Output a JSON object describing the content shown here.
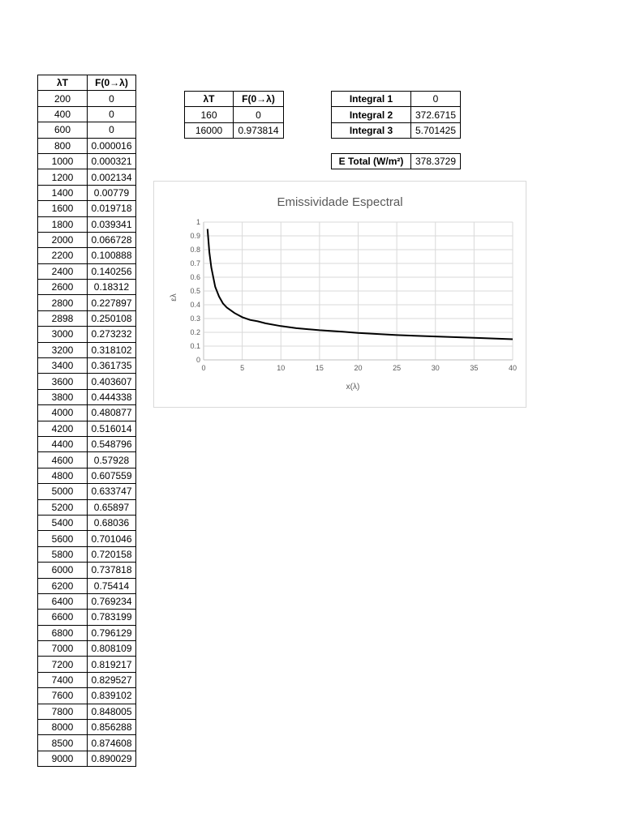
{
  "main_table": {
    "headers": [
      "λT",
      "F(0→λ)"
    ],
    "rows": [
      [
        "200",
        "0"
      ],
      [
        "400",
        "0"
      ],
      [
        "600",
        "0"
      ],
      [
        "800",
        "0.000016"
      ],
      [
        "1000",
        "0.000321"
      ],
      [
        "1200",
        "0.002134"
      ],
      [
        "1400",
        "0.00779"
      ],
      [
        "1600",
        "0.019718"
      ],
      [
        "1800",
        "0.039341"
      ],
      [
        "2000",
        "0.066728"
      ],
      [
        "2200",
        "0.100888"
      ],
      [
        "2400",
        "0.140256"
      ],
      [
        "2600",
        "0.18312"
      ],
      [
        "2800",
        "0.227897"
      ],
      [
        "2898",
        "0.250108"
      ],
      [
        "3000",
        "0.273232"
      ],
      [
        "3200",
        "0.318102"
      ],
      [
        "3400",
        "0.361735"
      ],
      [
        "3600",
        "0.403607"
      ],
      [
        "3800",
        "0.444338"
      ],
      [
        "4000",
        "0.480877"
      ],
      [
        "4200",
        "0.516014"
      ],
      [
        "4400",
        "0.548796"
      ],
      [
        "4600",
        "0.57928"
      ],
      [
        "4800",
        "0.607559"
      ],
      [
        "5000",
        "0.633747"
      ],
      [
        "5200",
        "0.65897"
      ],
      [
        "5400",
        "0.68036"
      ],
      [
        "5600",
        "0.701046"
      ],
      [
        "5800",
        "0.720158"
      ],
      [
        "6000",
        "0.737818"
      ],
      [
        "6200",
        "0.75414"
      ],
      [
        "6400",
        "0.769234"
      ],
      [
        "6600",
        "0.783199"
      ],
      [
        "6800",
        "0.796129"
      ],
      [
        "7000",
        "0.808109"
      ],
      [
        "7200",
        "0.819217"
      ],
      [
        "7400",
        "0.829527"
      ],
      [
        "7600",
        "0.839102"
      ],
      [
        "7800",
        "0.848005"
      ],
      [
        "8000",
        "0.856288"
      ],
      [
        "8500",
        "0.874608"
      ],
      [
        "9000",
        "0.890029"
      ]
    ]
  },
  "small_table": {
    "headers": [
      "λT",
      "F(0→λ)"
    ],
    "rows": [
      [
        "160",
        "0"
      ],
      [
        "16000",
        "0.973814"
      ]
    ]
  },
  "integrals": [
    {
      "label": "Integral 1",
      "value": "0"
    },
    {
      "label": "Integral 2",
      "value": "372.6715"
    },
    {
      "label": "Integral 3",
      "value": "5.701425"
    }
  ],
  "e_total": {
    "label": "E Total (W/m²)",
    "value": "378.3729"
  },
  "chart_data": {
    "type": "line",
    "title": "Emissividade Espectral",
    "xlabel": "x(λ)",
    "ylabel": "ελ",
    "xlim": [
      0,
      40
    ],
    "ylim": [
      0,
      1
    ],
    "xticks": [
      "0",
      "5",
      "10",
      "15",
      "20",
      "25",
      "30",
      "35",
      "40"
    ],
    "yticks": [
      "0",
      "0.1",
      "0.2",
      "0.3",
      "0.4",
      "0.5",
      "0.6",
      "0.7",
      "0.8",
      "0.9",
      "1"
    ],
    "grid": true,
    "line_color": "#000000",
    "series": [
      {
        "x": [
          0.5,
          0.75,
          1,
          1.5,
          2,
          2.5,
          3,
          4,
          5,
          6,
          7,
          8,
          10,
          12,
          15,
          18,
          20,
          25,
          30,
          35,
          40
        ],
        "y": [
          0.95,
          0.78,
          0.67,
          0.53,
          0.46,
          0.41,
          0.38,
          0.34,
          0.31,
          0.29,
          0.28,
          0.265,
          0.245,
          0.23,
          0.215,
          0.205,
          0.195,
          0.18,
          0.17,
          0.16,
          0.15
        ]
      }
    ]
  }
}
